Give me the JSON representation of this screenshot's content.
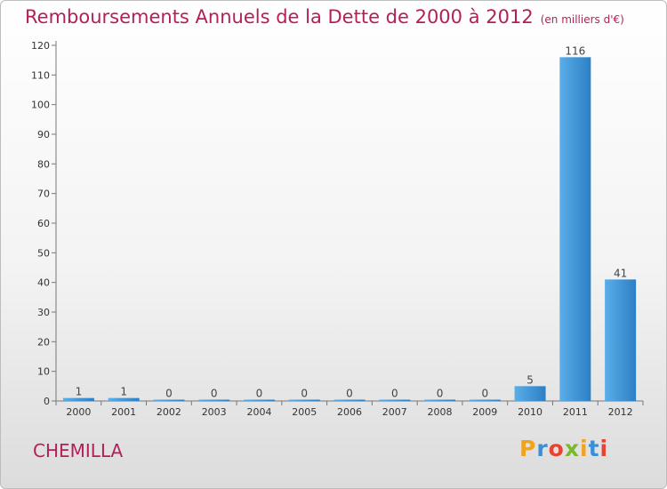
{
  "chart_data": {
    "type": "bar",
    "title": "Remboursements Annuels de la Dette de 2000 à 2012",
    "subtitle": "(en milliers d'€)",
    "categories": [
      "2000",
      "2001",
      "2002",
      "2003",
      "2004",
      "2005",
      "2006",
      "2007",
      "2008",
      "2009",
      "2010",
      "2011",
      "2012"
    ],
    "values": [
      1,
      1,
      0,
      0,
      0,
      0,
      0,
      0,
      0,
      0,
      5,
      116,
      41
    ],
    "ylim": [
      0,
      120
    ],
    "yticks": [
      0,
      10,
      20,
      30,
      40,
      50,
      60,
      70,
      80,
      90,
      100,
      110,
      120
    ],
    "grid": false,
    "bar_color": "#3a8fd6"
  },
  "footer": {
    "city": "CHEMILLA",
    "logo_letters": [
      "P",
      "r",
      "o",
      "x",
      "i",
      "t",
      "i"
    ],
    "logo_colors": [
      "#f0a31c",
      "#3a8fd6",
      "#e8432f",
      "#7ab929",
      "#f0a31c",
      "#3a8fd6",
      "#e8432f"
    ]
  }
}
